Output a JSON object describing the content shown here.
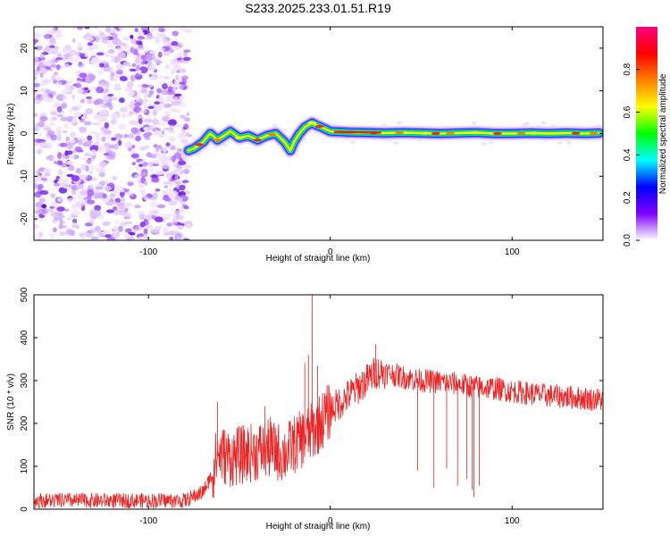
{
  "title": "S233.2025.233.01.51.R19",
  "chart_data": [
    {
      "type": "heatmap",
      "xlabel": "Height of straight line (km)",
      "ylabel": "Frequency (Hz)",
      "xlim": [
        -163,
        150
      ],
      "ylim": [
        -25,
        25
      ],
      "xticks": [
        -100,
        0,
        100
      ],
      "yticks": [
        -20,
        -10,
        0,
        10,
        20
      ],
      "colorbar": {
        "label": "Normalized spectral amplitude",
        "range": [
          0,
          1
        ],
        "ticks": [
          "0.0",
          "0.2",
          "0.4",
          "0.6",
          "0.8"
        ],
        "colors": [
          "#ffffff",
          "#8000ff",
          "#0000ff",
          "#00ffff",
          "#00ff00",
          "#ffff00",
          "#ff8000",
          "#ff0000",
          "#ff0080"
        ]
      },
      "ridge": {
        "x": [
          -78,
          -75,
          -70,
          -66,
          -62,
          -55,
          -50,
          -45,
          -40,
          -35,
          -30,
          -25,
          -22,
          -20,
          -17,
          -14,
          -12,
          -10,
          -8,
          -5,
          0,
          10,
          20,
          30,
          40,
          50,
          60,
          70,
          80,
          90,
          100,
          110,
          120,
          130,
          140,
          148
        ],
        "y": [
          -4,
          -3.5,
          -2,
          0,
          -1.5,
          0.5,
          -1,
          -0.5,
          -1.5,
          -0.5,
          0,
          -2,
          -4,
          -2,
          0,
          1.5,
          2,
          2.5,
          2,
          1.5,
          0.5,
          0.3,
          0.2,
          0.1,
          0.2,
          0.1,
          0,
          0.1,
          0.2,
          0,
          0,
          0.1,
          0,
          0.1,
          0,
          0.1
        ]
      },
      "noise_region_x": [
        -163,
        -78
      ]
    },
    {
      "type": "line",
      "xlabel": "Height of straight line (km)",
      "ylabel": "SNR (10 * v/v)",
      "xlim": [
        -163,
        150
      ],
      "ylim": [
        0,
        500
      ],
      "xticks": [
        -100,
        0,
        100
      ],
      "yticks": [
        0,
        100,
        200,
        300,
        400,
        500
      ],
      "color": "#ee2222",
      "envelope": {
        "x": [
          -163,
          -120,
          -80,
          -70,
          -65,
          -62,
          -55,
          -45,
          -35,
          -25,
          -20,
          -15,
          -10,
          -5,
          0,
          10,
          20,
          25,
          30,
          40,
          50,
          60,
          70,
          80,
          90,
          100,
          110,
          120,
          130,
          140,
          150
        ],
        "y": [
          20,
          20,
          20,
          40,
          80,
          130,
          120,
          130,
          140,
          130,
          150,
          165,
          180,
          205,
          230,
          265,
          300,
          320,
          320,
          308,
          300,
          297,
          292,
          285,
          282,
          275,
          270,
          265,
          262,
          258,
          255
        ]
      },
      "noise_amplitude": 18,
      "spikes": [
        {
          "x": -62,
          "y": 250
        },
        {
          "x": -36,
          "y": 240
        },
        {
          "x": -33,
          "y": 215
        },
        {
          "x": -14,
          "y": 340
        },
        {
          "x": -12,
          "y": 360
        },
        {
          "x": -10,
          "y": 520
        },
        {
          "x": -7,
          "y": 335
        },
        {
          "x": 25,
          "y": 385
        }
      ],
      "dips": [
        {
          "x": 48,
          "y": 90
        },
        {
          "x": 57,
          "y": 50
        },
        {
          "x": 64,
          "y": 95
        },
        {
          "x": 70,
          "y": 55
        },
        {
          "x": 75,
          "y": 70
        },
        {
          "x": 78,
          "y": 45
        },
        {
          "x": 79,
          "y": 28
        },
        {
          "x": 82,
          "y": 55
        }
      ]
    }
  ]
}
